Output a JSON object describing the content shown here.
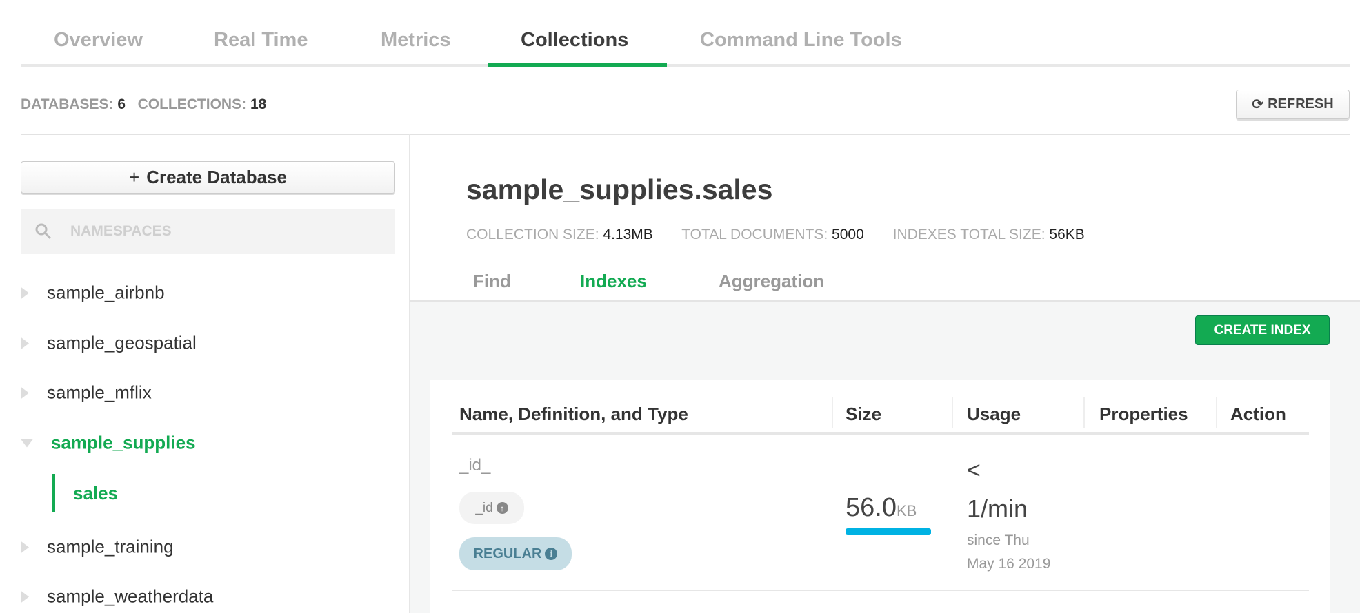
{
  "nav_tabs": [
    {
      "label": "Overview",
      "active": false
    },
    {
      "label": "Real Time",
      "active": false
    },
    {
      "label": "Metrics",
      "active": false
    },
    {
      "label": "Collections",
      "active": true
    },
    {
      "label": "Command Line Tools",
      "active": false
    }
  ],
  "stats": {
    "databases_label": "DATABASES:",
    "databases": "6",
    "collections_label": "COLLECTIONS:",
    "collections": "18"
  },
  "refresh_label": "REFRESH",
  "sidebar": {
    "create_database": "Create Database",
    "search_placeholder": "NAMESPACES",
    "databases": [
      "sample_airbnb",
      "sample_geospatial",
      "sample_mflix",
      "sample_supplies",
      "sample_training",
      "sample_weatherdata"
    ],
    "expanded": "sample_supplies",
    "collections": [
      "sales"
    ]
  },
  "main": {
    "title": "sample_supplies.sales",
    "collection_size_label": "COLLECTION SIZE:",
    "collection_size": "4.13MB",
    "total_documents_label": "TOTAL DOCUMENTS:",
    "total_documents": "5000",
    "indexes_size_label": "INDEXES TOTAL SIZE:",
    "indexes_size": "56KB",
    "tabs": [
      "Find",
      "Indexes",
      "Aggregation"
    ],
    "active_tab": "Indexes",
    "create_index": "CREATE INDEX",
    "table": {
      "headers": [
        "Name, Definition, and Type",
        "Size",
        "Usage",
        "Properties",
        "Action"
      ],
      "rows": [
        {
          "name": "_id_",
          "field": "_id",
          "direction": "ascending",
          "type": "REGULAR",
          "size": "56.0",
          "size_unit": "KB",
          "usage_prefix": "<",
          "usage": "1/min",
          "since1": "since Thu",
          "since2": "May 16 2019"
        }
      ]
    }
  },
  "colors": {
    "accent": "#13aa52",
    "size_bar": "#00b2e3",
    "regular_badge": "#c5dde5"
  }
}
